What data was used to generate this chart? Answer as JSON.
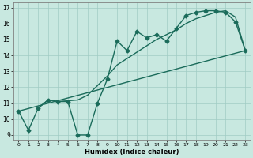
{
  "title": "",
  "xlabel": "Humidex (Indice chaleur)",
  "ylabel": "",
  "xlim": [
    -0.5,
    23.5
  ],
  "ylim": [
    8.7,
    17.3
  ],
  "yticks": [
    9,
    10,
    11,
    12,
    13,
    14,
    15,
    16,
    17
  ],
  "xticks": [
    0,
    1,
    2,
    3,
    4,
    5,
    6,
    7,
    8,
    9,
    10,
    11,
    12,
    13,
    14,
    15,
    16,
    17,
    18,
    19,
    20,
    21,
    22,
    23
  ],
  "bg_color": "#c8e8e0",
  "grid_color": "#a0ccc4",
  "line_color": "#1a6b5a",
  "line1_x": [
    0,
    1,
    2,
    3,
    4,
    5,
    6,
    7,
    8,
    9,
    10,
    11,
    12,
    13,
    14,
    15,
    16,
    17,
    18,
    19,
    20,
    21,
    22,
    23
  ],
  "line1_y": [
    10.5,
    9.3,
    10.7,
    11.2,
    11.1,
    11.1,
    9.0,
    9.0,
    11.0,
    12.5,
    14.9,
    14.3,
    15.5,
    15.1,
    15.3,
    14.9,
    15.7,
    16.5,
    16.7,
    16.8,
    16.8,
    16.7,
    16.1,
    14.3
  ],
  "line2_x": [
    2,
    3,
    4,
    5,
    6,
    7,
    8,
    9,
    10,
    11,
    12,
    13,
    14,
    15,
    16,
    17,
    18,
    19,
    20,
    21,
    22,
    23
  ],
  "line2_y": [
    10.7,
    11.2,
    11.1,
    11.15,
    11.2,
    11.5,
    12.1,
    12.7,
    13.4,
    13.8,
    14.2,
    14.6,
    15.0,
    15.3,
    15.6,
    16.0,
    16.3,
    16.5,
    16.7,
    16.8,
    16.4,
    14.3
  ],
  "line3_x": [
    0,
    23
  ],
  "line3_y": [
    10.5,
    14.3
  ],
  "marker_size": 2.5,
  "line_width": 1.0
}
